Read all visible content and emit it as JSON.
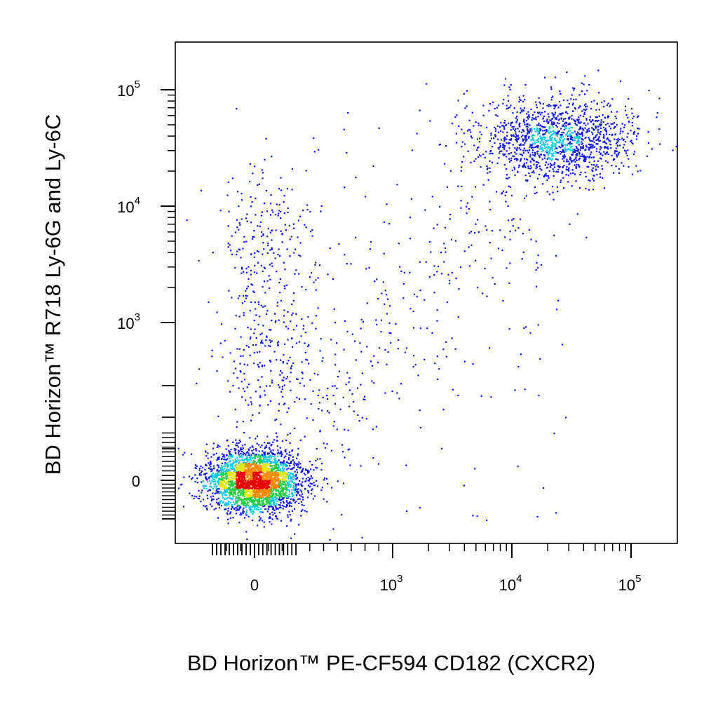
{
  "chart_data": {
    "type": "scatter",
    "title": "",
    "xlabel": "BD Horizon™ PE-CF594 CD182 (CXCR2)",
    "ylabel": "BD Horizon™ R718 Ly-6G and Ly-6C",
    "x_scale": "biexponential",
    "y_scale": "biexponential",
    "xlim": [
      -300,
      150000
    ],
    "ylim": [
      -300,
      150000
    ],
    "grid": false,
    "x_ticks": [
      {
        "value": 0,
        "base": "0",
        "exp": ""
      },
      {
        "value": 1000,
        "base": "10",
        "exp": "3"
      },
      {
        "value": 10000,
        "base": "10",
        "exp": "4"
      },
      {
        "value": 100000,
        "base": "10",
        "exp": "5"
      }
    ],
    "y_ticks": [
      {
        "value": 0,
        "base": "0",
        "exp": ""
      },
      {
        "value": 1000,
        "base": "10",
        "exp": "3"
      },
      {
        "value": 10000,
        "base": "10",
        "exp": "4"
      },
      {
        "value": 100000,
        "base": "10",
        "exp": "5"
      }
    ],
    "density_colors": [
      "#0a14e6",
      "#00c8e6",
      "#22cc44",
      "#e6e600",
      "#ff8800",
      "#e60000"
    ],
    "populations": [
      {
        "label_on_chart": "",
        "center_x": 0,
        "center_y": 0,
        "share": 0.58,
        "description_value": "double-negative cluster"
      },
      {
        "label_on_chart": "",
        "center_x": 28000,
        "center_y": 38000,
        "share": 0.27,
        "description_value": "double-positive cluster"
      },
      {
        "label_on_chart": "",
        "center_x": 0,
        "center_y": 8000,
        "share": 0.08,
        "description_value": "Ly-6G/Ly-6C positive, CXCR2 negative"
      },
      {
        "label_on_chart": "",
        "center_x": 3000,
        "center_y": 4000,
        "share": 0.07,
        "description_value": "intermediate"
      }
    ]
  }
}
